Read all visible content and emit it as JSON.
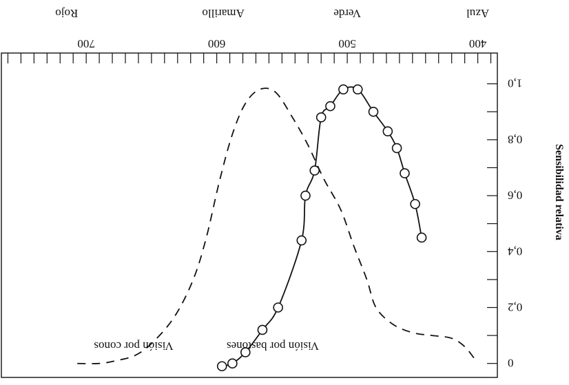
{
  "chart_data": {
    "type": "line",
    "orientation": "rotated-180",
    "x": {
      "ticks": [
        "400",
        "500",
        "600",
        "700"
      ],
      "range": [
        385,
        765
      ],
      "reversed": true
    },
    "y": {
      "label": "Sensibilidad relativa",
      "ticks": [
        "0",
        "0,2",
        "0,4",
        "0,6",
        "0,8",
        "1,0"
      ],
      "range": [
        -0.05,
        1.11
      ],
      "reversed_on_screen": true
    },
    "color_bands": [
      {
        "label": "Azul",
        "x": 400
      },
      {
        "label": "Verde",
        "x": 500
      },
      {
        "label": "Amarillo",
        "x": 595
      },
      {
        "label": "Rojo",
        "x": 715
      }
    ],
    "series": [
      {
        "name": "Visión por bastones",
        "style": "solid",
        "markers": "circle",
        "points": [
          [
            443,
            0.45
          ],
          [
            448,
            0.57
          ],
          [
            456,
            0.68
          ],
          [
            462,
            0.77
          ],
          [
            469,
            0.83
          ],
          [
            480,
            0.9
          ],
          [
            492,
            0.98
          ],
          [
            503,
            0.98
          ],
          [
            513,
            0.92
          ],
          [
            520,
            0.88
          ],
          [
            525,
            0.69
          ],
          [
            532,
            0.6
          ],
          [
            535,
            0.44
          ],
          [
            553,
            0.2
          ],
          [
            565,
            0.12
          ],
          [
            578,
            0.04
          ],
          [
            588,
            0.0
          ],
          [
            596,
            -0.01
          ]
        ]
      },
      {
        "name": "Visión por conos",
        "style": "dashed",
        "markers": "none",
        "points": [
          [
            403,
            0.02
          ],
          [
            410,
            0.06
          ],
          [
            420,
            0.09
          ],
          [
            435,
            0.1
          ],
          [
            450,
            0.11
          ],
          [
            465,
            0.14
          ],
          [
            478,
            0.2
          ],
          [
            485,
            0.3
          ],
          [
            495,
            0.42
          ],
          [
            505,
            0.55
          ],
          [
            518,
            0.66
          ],
          [
            530,
            0.78
          ],
          [
            542,
            0.88
          ],
          [
            555,
            0.97
          ],
          [
            567,
            0.98
          ],
          [
            578,
            0.93
          ],
          [
            588,
            0.82
          ],
          [
            598,
            0.65
          ],
          [
            608,
            0.45
          ],
          [
            618,
            0.3
          ],
          [
            632,
            0.17
          ],
          [
            648,
            0.08
          ],
          [
            662,
            0.03
          ],
          [
            677,
            0.01
          ],
          [
            690,
            0.0
          ],
          [
            710,
            0.0
          ]
        ]
      }
    ]
  }
}
